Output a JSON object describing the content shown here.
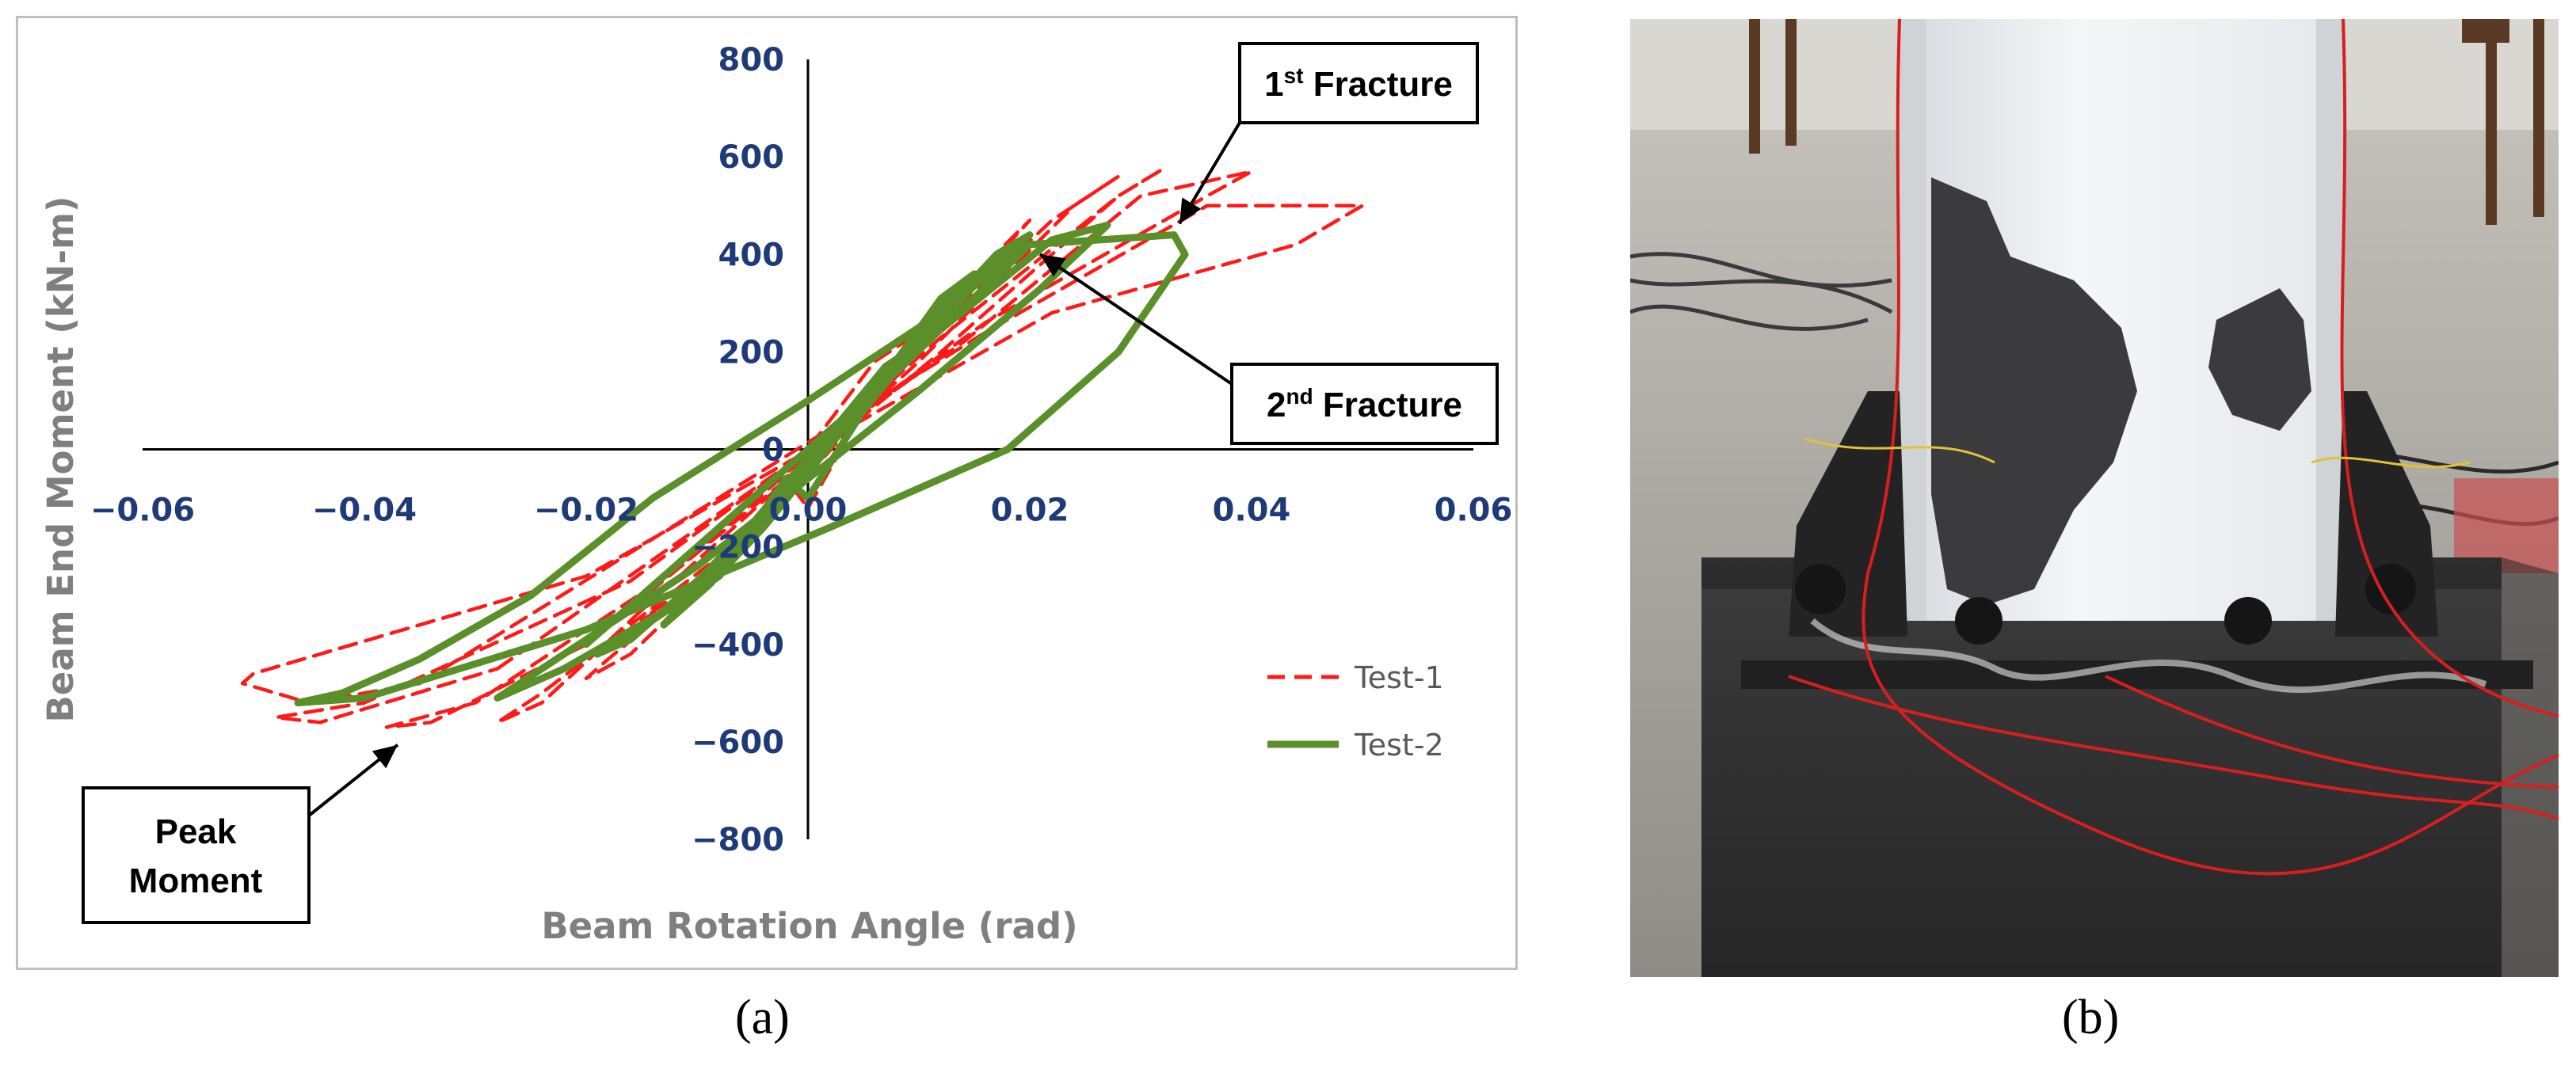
{
  "chart_data": {
    "type": "line",
    "xlabel": "Beam Rotation Angle (rad)",
    "ylabel": "Beam End Moment (kN-m)",
    "xlim": [
      -0.06,
      0.06
    ],
    "ylim": [
      -800,
      800
    ],
    "x_ticks": [
      "−0.06",
      "−0.04",
      "−0.02",
      "0.00",
      "0.02",
      "0.04",
      "0.06"
    ],
    "y_ticks": [
      "800",
      "600",
      "400",
      "200",
      "0",
      "−200",
      "−400",
      "−600",
      "−800"
    ],
    "x_tick_values": [
      -0.06,
      -0.04,
      -0.02,
      0.0,
      0.02,
      0.04,
      0.06
    ],
    "y_tick_values": [
      800,
      600,
      400,
      200,
      0,
      -200,
      -400,
      -600,
      -800
    ],
    "grid": false,
    "legend_position": "bottom-right",
    "series": [
      {
        "name": "Test-1",
        "color": "#ff1a1a",
        "dash": "dashed",
        "loops": [
          [
            [
              0.0,
              -120
            ],
            [
              0.004,
              40
            ],
            [
              0.008,
              170
            ],
            [
              0.01,
              240
            ],
            [
              0.006,
              180
            ],
            [
              0.002,
              60
            ],
            [
              -0.002,
              -60
            ],
            [
              -0.006,
              -180
            ],
            [
              -0.01,
              -240
            ],
            [
              -0.006,
              -180
            ],
            [
              -0.002,
              -60
            ],
            [
              0.0,
              -120
            ]
          ],
          [
            [
              -0.005,
              -180
            ],
            [
              0.006,
              100
            ],
            [
              0.012,
              300
            ],
            [
              0.015,
              350
            ],
            [
              0.011,
              250
            ],
            [
              0.004,
              60
            ],
            [
              -0.004,
              -150
            ],
            [
              -0.01,
              -290
            ],
            [
              -0.015,
              -350
            ],
            [
              -0.012,
              -300
            ],
            [
              -0.005,
              -180
            ]
          ],
          [
            [
              -0.01,
              -280
            ],
            [
              0.008,
              150
            ],
            [
              0.018,
              420
            ],
            [
              0.02,
              470
            ],
            [
              0.016,
              380
            ],
            [
              0.006,
              130
            ],
            [
              -0.006,
              -200
            ],
            [
              -0.016,
              -420
            ],
            [
              -0.02,
              -470
            ],
            [
              -0.018,
              -430
            ],
            [
              -0.01,
              -280
            ]
          ],
          [
            [
              -0.015,
              -330
            ],
            [
              0.01,
              180
            ],
            [
              0.024,
              500
            ],
            [
              0.028,
              560
            ],
            [
              0.022,
              470
            ],
            [
              0.008,
              170
            ],
            [
              -0.008,
              -220
            ],
            [
              -0.024,
              -500
            ],
            [
              -0.028,
              -560
            ],
            [
              -0.024,
              -520
            ],
            [
              -0.015,
              -330
            ]
          ],
          [
            [
              -0.02,
              -400
            ],
            [
              0.012,
              200
            ],
            [
              0.028,
              520
            ],
            [
              0.032,
              575
            ],
            [
              0.028,
              520
            ],
            [
              0.012,
              230
            ],
            [
              -0.012,
              -250
            ],
            [
              -0.03,
              -520
            ],
            [
              -0.038,
              -570
            ],
            [
              -0.034,
              -560
            ],
            [
              -0.02,
              -400
            ]
          ],
          [
            [
              -0.028,
              -450
            ],
            [
              0.014,
              220
            ],
            [
              0.03,
              520
            ],
            [
              0.04,
              570
            ],
            [
              0.036,
              520
            ],
            [
              0.016,
              260
            ],
            [
              -0.016,
              -270
            ],
            [
              -0.04,
              -520
            ],
            [
              -0.048,
              -550
            ],
            [
              -0.044,
              -560
            ],
            [
              -0.028,
              -450
            ]
          ],
          [
            [
              -0.035,
              -480
            ],
            [
              0.016,
              240
            ],
            [
              0.036,
              500
            ],
            [
              0.05,
              500
            ],
            [
              0.044,
              420
            ],
            [
              0.022,
              280
            ],
            [
              -0.02,
              -260
            ],
            [
              -0.05,
              -460
            ],
            [
              -0.051,
              -480
            ],
            [
              -0.045,
              -520
            ],
            [
              -0.035,
              -480
            ]
          ]
        ]
      },
      {
        "name": "Test-2",
        "color": "#5a8f29",
        "dash": "solid",
        "loops": [
          [
            [
              0.0,
              -100
            ],
            [
              0.005,
              80
            ],
            [
              0.009,
              190
            ],
            [
              0.011,
              230
            ],
            [
              0.007,
              170
            ],
            [
              0.003,
              60
            ],
            [
              -0.002,
              -70
            ],
            [
              -0.006,
              -180
            ],
            [
              -0.009,
              -220
            ],
            [
              -0.005,
              -160
            ],
            [
              -0.002,
              -60
            ],
            [
              0.0,
              -100
            ]
          ],
          [
            [
              -0.004,
              -160
            ],
            [
              0.006,
              120
            ],
            [
              0.012,
              310
            ],
            [
              0.015,
              360
            ],
            [
              0.011,
              270
            ],
            [
              0.004,
              70
            ],
            [
              -0.006,
              -190
            ],
            [
              -0.011,
              -310
            ],
            [
              -0.013,
              -360
            ],
            [
              -0.009,
              -280
            ],
            [
              -0.004,
              -160
            ]
          ],
          [
            [
              -0.008,
              -260
            ],
            [
              0.008,
              180
            ],
            [
              0.017,
              400
            ],
            [
              0.02,
              440
            ],
            [
              0.016,
              360
            ],
            [
              0.006,
              120
            ],
            [
              -0.008,
              -230
            ],
            [
              -0.016,
              -390
            ],
            [
              -0.019,
              -420
            ],
            [
              -0.014,
              -350
            ],
            [
              -0.008,
              -260
            ]
          ],
          [
            [
              -0.012,
              -320
            ],
            [
              0.01,
              210
            ],
            [
              0.022,
              430
            ],
            [
              0.027,
              460
            ],
            [
              0.021,
              330
            ],
            [
              0.01,
              120
            ],
            [
              -0.01,
              -240
            ],
            [
              -0.022,
              -420
            ],
            [
              -0.028,
              -510
            ],
            [
              -0.022,
              -450
            ],
            [
              -0.012,
              -320
            ]
          ],
          [
            [
              -0.02,
              -400
            ],
            [
              0.008,
              160
            ],
            [
              0.02,
              420
            ],
            [
              0.033,
              440
            ],
            [
              0.034,
              400
            ],
            [
              0.028,
              200
            ],
            [
              0.018,
              0
            ],
            [
              0.002,
              -160
            ],
            [
              -0.02,
              -370
            ],
            [
              -0.04,
              -510
            ],
            [
              -0.046,
              -520
            ],
            [
              -0.042,
              -500
            ],
            [
              -0.035,
              -430
            ],
            [
              -0.025,
              -300
            ],
            [
              -0.014,
              -100
            ],
            [
              0.0,
              100
            ],
            [
              0.01,
              250
            ],
            [
              0.02,
              420
            ]
          ]
        ]
      }
    ],
    "annotations": [
      {
        "label": "1st Fracture",
        "main": "1",
        "sup": "st",
        "rest": " Fracture",
        "target": [
          0.0335,
          450
        ]
      },
      {
        "label": "2nd Fracture",
        "main": "2",
        "sup": "nd",
        "rest": " Fracture",
        "target": [
          0.0205,
          410
        ]
      },
      {
        "label": "Peak Moment",
        "lines": [
          "Peak",
          "Moment"
        ],
        "target": [
          -0.037,
          -590
        ]
      }
    ]
  },
  "panel_labels": {
    "a": "(a)",
    "b": "(b)"
  },
  "colors": {
    "axis_tick_text": "#1f3a78",
    "axis_title_text": "#7f7f7f",
    "test1": "#ff1a1a",
    "test2": "#5a8f29"
  }
}
